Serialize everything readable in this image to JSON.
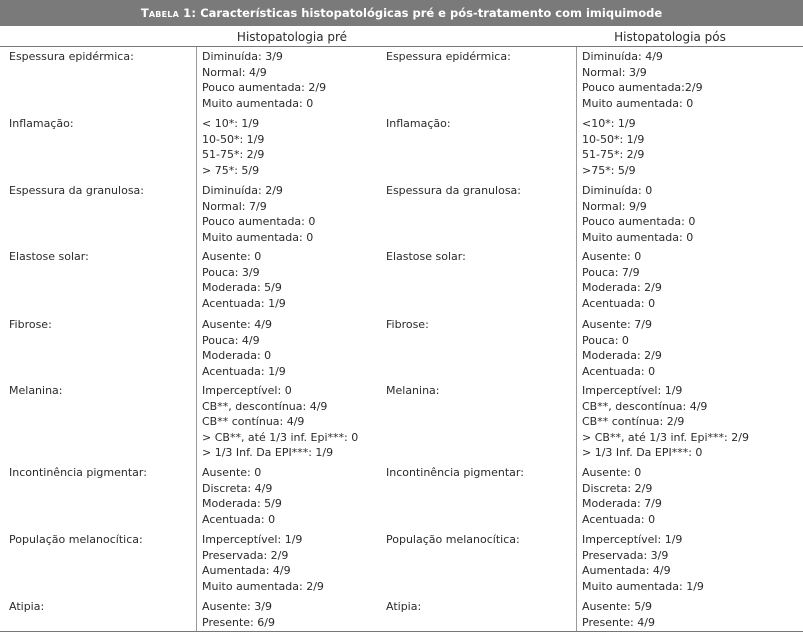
{
  "table": {
    "label": "Tabela 1:",
    "title": "Características histopatológicas pré e pós-tratamento com imiquimode",
    "header_pre": "Histopatologia pré",
    "header_pos": "Histopatologia pós",
    "rows": [
      {
        "param": "Espessura epidérmica:",
        "pre": [
          "Diminuída: 3/9",
          "Normal: 4/9",
          "Pouco aumentada: 2/9",
          "Muito aumentada: 0"
        ],
        "pos": [
          "Diminuída: 4/9",
          "Normal: 3/9",
          "Pouco aumentada:2/9",
          "Muito aumentada: 0"
        ]
      },
      {
        "param": "Inflamação:",
        "pre": [
          "< 10*: 1/9",
          "10-50*: 1/9",
          "51-75*: 2/9",
          "> 75*: 5/9"
        ],
        "pos": [
          "<10*: 1/9",
          "10-50*: 1/9",
          "51-75*: 2/9",
          ">75*: 5/9"
        ]
      },
      {
        "param": "Espessura da granulosa:",
        "pre": [
          "Diminuída: 2/9",
          "Normal: 7/9",
          "Pouco aumentada: 0",
          "Muito aumentada: 0"
        ],
        "pos": [
          "Diminuída: 0",
          "Normal: 9/9",
          "Pouco aumentada: 0",
          "Muito aumentada: 0"
        ]
      },
      {
        "param": "Elastose solar:",
        "pre": [
          "Ausente: 0",
          "Pouca: 3/9",
          "Moderada: 5/9",
          "Acentuada: 1/9"
        ],
        "pos": [
          "Ausente: 0",
          "Pouca: 7/9",
          "Moderada: 2/9",
          "Acentuada: 0"
        ]
      },
      {
        "param": "Fibrose:",
        "pre": [
          "Ausente: 4/9",
          "Pouca: 4/9",
          "Moderada: 0",
          "Acentuada: 1/9"
        ],
        "pos": [
          "Ausente: 7/9",
          "Pouca: 0",
          "Moderada: 2/9",
          "Acentuada: 0"
        ]
      },
      {
        "param": "Melanina:",
        "pre": [
          "Imperceptível: 0",
          "CB**, descontínua: 4/9",
          "CB** contínua: 4/9",
          "> CB**, até 1/3 inf. Epi***: 0",
          "> 1/3 Inf. Da EPI***: 1/9"
        ],
        "pos": [
          "Imperceptível: 1/9",
          "CB**, descontínua: 4/9",
          "CB** contínua: 2/9",
          "> CB**, até 1/3 inf. Epi***: 2/9",
          "> 1/3 Inf. Da EPI***: 0"
        ]
      },
      {
        "param": "Incontinência pigmentar:",
        "pre": [
          "Ausente: 0",
          "Discreta: 4/9",
          "Moderada: 5/9",
          "Acentuada: 0"
        ],
        "pos": [
          "Ausente: 0",
          "Discreta: 2/9",
          "Moderada: 7/9",
          "Acentuada: 0"
        ]
      },
      {
        "param": "População melanocítica:",
        "pre": [
          "Imperceptível: 1/9",
          "Preservada: 2/9",
          "Aumentada: 4/9",
          "Muito aumentada: 2/9"
        ],
        "pos": [
          "Imperceptível: 1/9",
          "Preservada: 3/9",
          "Aumentada: 4/9",
          "Muito aumentada: 1/9"
        ]
      },
      {
        "param": "Atipia:",
        "pre": [
          "Ausente: 3/9",
          "Presente: 6/9"
        ],
        "pos": [
          "Ausente: 5/9",
          "Presente: 4/9"
        ]
      }
    ]
  }
}
